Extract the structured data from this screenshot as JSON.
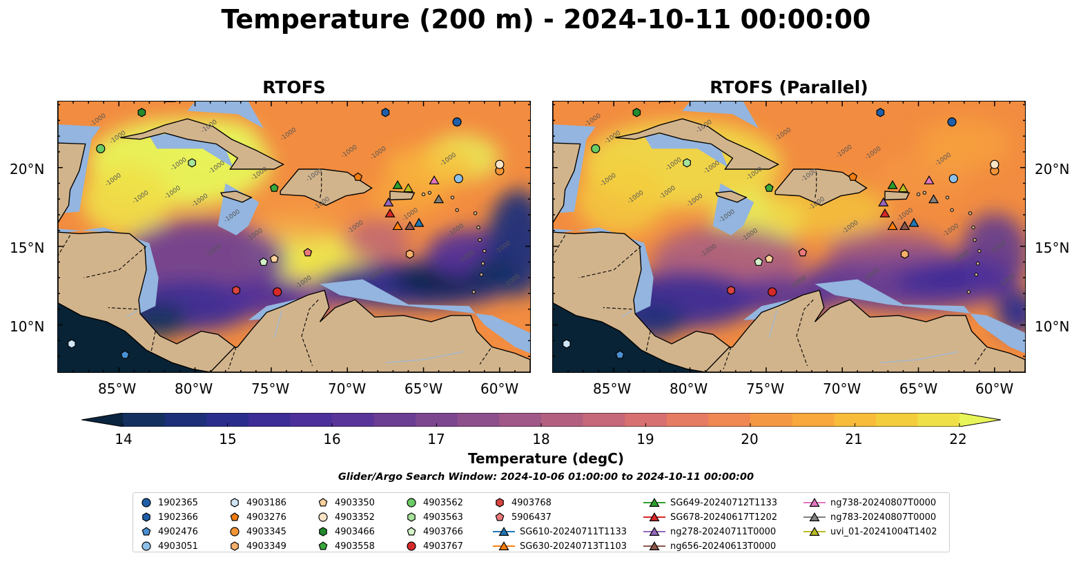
{
  "title": "Temperature (200 m) - 2024-10-11 00:00:00",
  "panels": [
    {
      "title": "RTOFS"
    },
    {
      "title": "RTOFS (Parallel)"
    }
  ],
  "axes": {
    "lon_ticks": [
      "85°W",
      "80°W",
      "75°W",
      "70°W",
      "65°W",
      "60°W"
    ],
    "lat_ticks": [
      "20°N",
      "15°N",
      "10°N"
    ],
    "lon_range": [
      -89,
      -58
    ],
    "lat_range": [
      7,
      24.2
    ]
  },
  "contour_label": "-1000",
  "colorbar": {
    "label": "Temperature (degC)",
    "ticks": [
      "14",
      "15",
      "16",
      "17",
      "18",
      "19",
      "20",
      "21",
      "22"
    ],
    "min": 14,
    "max": 22,
    "extend": "both",
    "colors": [
      "#0b2540",
      "#13305f",
      "#1e2f7a",
      "#2a2d8c",
      "#3b2c96",
      "#4c2f9a",
      "#5a3599",
      "#6b3d93",
      "#7d4790",
      "#8e508c",
      "#a05888",
      "#b36080",
      "#c6687a",
      "#d77070",
      "#e57b63",
      "#ef8852",
      "#f59844",
      "#f8a83c",
      "#f9bb3a",
      "#f4cd3d",
      "#f0e048",
      "#e8f55a"
    ]
  },
  "search_window": "Glider/Argo Search Window: 2024-10-06 01:00:00 to 2024-10-11 00:00:00",
  "legend": [
    {
      "label": "1902365",
      "marker": "circle",
      "color": "#1f5fa8"
    },
    {
      "label": "1902366",
      "marker": "hexagon",
      "color": "#1f5fa8"
    },
    {
      "label": "4902476",
      "marker": "pentagon",
      "color": "#4a8fd1"
    },
    {
      "label": "4903051",
      "marker": "circle",
      "color": "#8ec1ea"
    },
    {
      "label": "4903186",
      "marker": "hexagon",
      "color": "#cfe6f7"
    },
    {
      "label": "4903276",
      "marker": "pentagon",
      "color": "#f07c10"
    },
    {
      "label": "4903345",
      "marker": "circle",
      "color": "#f59436"
    },
    {
      "label": "4903349",
      "marker": "hexagon",
      "color": "#f8b06a"
    },
    {
      "label": "4903350",
      "marker": "pentagon",
      "color": "#fcd29c"
    },
    {
      "label": "4903352",
      "marker": "circle",
      "color": "#fde3c6"
    },
    {
      "label": "4903466",
      "marker": "hexagon",
      "color": "#238b2c"
    },
    {
      "label": "4903558",
      "marker": "pentagon",
      "color": "#3aa83c"
    },
    {
      "label": "4903562",
      "marker": "circle",
      "color": "#6bcb64"
    },
    {
      "label": "4903563",
      "marker": "hexagon",
      "color": "#a6e39b"
    },
    {
      "label": "4903766",
      "marker": "pentagon",
      "color": "#d3f2c8"
    },
    {
      "label": "4903767",
      "marker": "circle",
      "color": "#d62a2a"
    },
    {
      "label": "4903768",
      "marker": "hexagon",
      "color": "#d9443f"
    },
    {
      "label": "5906437",
      "marker": "pentagon",
      "color": "#ea7a7a"
    },
    {
      "label": "SG610-20240711T1133",
      "marker": "triangle-line",
      "color": "#1f77b4"
    },
    {
      "label": "SG630-20240713T1103",
      "marker": "triangle-line",
      "color": "#ff7f0e"
    },
    {
      "label": "SG649-20240712T1133",
      "marker": "triangle-line",
      "color": "#2ca02c"
    },
    {
      "label": "SG678-20240617T1202",
      "marker": "triangle-line",
      "color": "#d62728"
    },
    {
      "label": "ng278-20240711T0000",
      "marker": "triangle-line",
      "color": "#9467bd"
    },
    {
      "label": "ng656-20240613T0000",
      "marker": "triangle-line",
      "color": "#8c564b"
    },
    {
      "label": "ng738-20240807T0000",
      "marker": "triangle-line",
      "color": "#e377c2"
    },
    {
      "label": "ng783-20240807T0000",
      "marker": "triangle-line",
      "color": "#7f7f7f"
    },
    {
      "label": "uvi_01-20241004T1402",
      "marker": "triangle-line",
      "color": "#bcbd22"
    }
  ],
  "markers": [
    {
      "label": "1902365",
      "lon": -62.8,
      "lat": 22.9
    },
    {
      "label": "1902366",
      "lon": -67.5,
      "lat": 23.5
    },
    {
      "label": "4902476",
      "lon": -84.6,
      "lat": 8.1
    },
    {
      "label": "4903051",
      "lon": -62.7,
      "lat": 19.3
    },
    {
      "label": "4903186",
      "lon": -88.1,
      "lat": 8.8
    },
    {
      "label": "4903276",
      "lon": -69.3,
      "lat": 19.4
    },
    {
      "label": "4903345",
      "lon": -60.0,
      "lat": 19.8
    },
    {
      "label": "4903349",
      "lon": -65.9,
      "lat": 14.5
    },
    {
      "label": "4903350",
      "lon": -74.8,
      "lat": 14.2
    },
    {
      "label": "4903352",
      "lon": -60.0,
      "lat": 20.2
    },
    {
      "label": "4903466",
      "lon": -83.5,
      "lat": 23.5
    },
    {
      "label": "4903558",
      "lon": -74.8,
      "lat": 18.7
    },
    {
      "label": "4903562",
      "lon": -86.2,
      "lat": 21.2
    },
    {
      "label": "4903563",
      "lon": -80.2,
      "lat": 20.3
    },
    {
      "label": "4903766",
      "lon": -75.5,
      "lat": 14.0
    },
    {
      "label": "4903767",
      "lon": -74.6,
      "lat": 12.1
    },
    {
      "label": "4903768",
      "lon": -77.3,
      "lat": 12.2
    },
    {
      "label": "5906437",
      "lon": -72.6,
      "lat": 14.6
    },
    {
      "label": "SG610-20240711T1133",
      "lon": -65.3,
      "lat": 16.5
    },
    {
      "label": "SG630-20240713T1103",
      "lon": -66.7,
      "lat": 16.3
    },
    {
      "label": "SG649-20240712T1133",
      "lon": -66.7,
      "lat": 18.9
    },
    {
      "label": "SG678-20240617T1202",
      "lon": -67.2,
      "lat": 17.1
    },
    {
      "label": "ng278-20240711T0000",
      "lon": -67.3,
      "lat": 17.8
    },
    {
      "label": "ng656-20240613T0000",
      "lon": -65.9,
      "lat": 16.3
    },
    {
      "label": "ng738-20240807T0000",
      "lon": -64.3,
      "lat": 19.2
    },
    {
      "label": "ng783-20240807T0000",
      "lon": -64.0,
      "lat": 18.0
    },
    {
      "label": "uvi_01-20241004T1402",
      "lon": -66.0,
      "lat": 18.7
    }
  ],
  "style": {
    "land": "#d2b48c",
    "shelf": "#93b5df",
    "pacific": "#082335",
    "ocean_base": "#f28c40"
  }
}
